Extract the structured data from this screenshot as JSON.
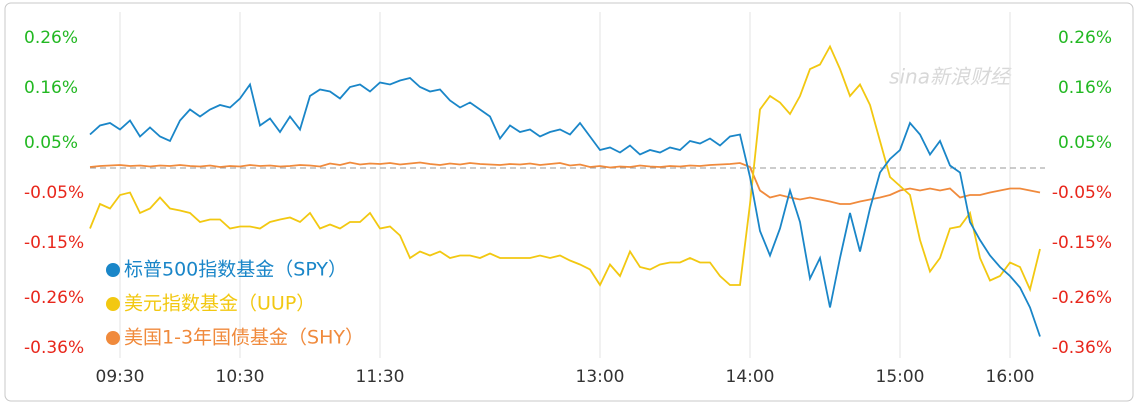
{
  "chart_data": {
    "type": "line",
    "watermark": "sina新浪财经",
    "categories": [
      null,
      null,
      null,
      "09:30",
      null,
      null,
      null,
      null,
      null,
      null,
      null,
      null,
      null,
      null,
      null,
      "10:30",
      null,
      null,
      null,
      null,
      null,
      null,
      null,
      null,
      null,
      null,
      null,
      null,
      null,
      "11:30",
      null,
      null,
      null,
      null,
      null,
      null,
      null,
      null,
      null,
      null,
      null,
      null,
      null,
      null,
      null,
      null,
      null,
      null,
      null,
      null,
      null,
      "13:00",
      null,
      null,
      null,
      null,
      null,
      null,
      null,
      null,
      null,
      null,
      null,
      null,
      null,
      null,
      "14:00",
      null,
      null,
      null,
      null,
      null,
      null,
      null,
      null,
      null,
      null,
      null,
      null,
      null,
      null,
      "15:00",
      null,
      null,
      null,
      null,
      null,
      null,
      null,
      null,
      null,
      null,
      "16:00",
      null,
      null,
      null
    ],
    "series": [
      {
        "name": "标普500指数基金（SPY）",
        "color": "#1a86c8",
        "values": [
          0.067,
          0.085,
          0.09,
          0.077,
          0.095,
          0.063,
          0.081,
          0.063,
          0.054,
          0.095,
          0.117,
          0.103,
          0.117,
          0.126,
          0.121,
          0.139,
          0.167,
          0.085,
          0.099,
          0.072,
          0.103,
          0.077,
          0.144,
          0.157,
          0.153,
          0.139,
          0.162,
          0.167,
          0.153,
          0.171,
          0.167,
          0.175,
          0.18,
          0.162,
          0.153,
          0.157,
          0.135,
          0.121,
          0.131,
          0.117,
          0.103,
          0.059,
          0.085,
          0.072,
          0.077,
          0.063,
          0.072,
          0.077,
          0.067,
          0.09,
          0.063,
          0.036,
          0.041,
          0.031,
          0.045,
          0.027,
          0.036,
          0.031,
          0.041,
          0.036,
          0.054,
          0.049,
          0.059,
          0.045,
          0.063,
          0.067,
          -0.018,
          -0.126,
          -0.175,
          -0.121,
          -0.045,
          -0.108,
          -0.221,
          -0.18,
          -0.279,
          -0.18,
          -0.09,
          -0.167,
          -0.081,
          -0.009,
          0.018,
          0.036,
          0.09,
          0.067,
          0.027,
          0.054,
          0.005,
          -0.009,
          -0.108,
          -0.144,
          -0.175,
          -0.198,
          -0.216,
          -0.239,
          -0.279,
          -0.337
        ]
      },
      {
        "name": "美元指数基金（UUP）",
        "color": "#f2c811",
        "values": [
          -0.121,
          -0.072,
          -0.081,
          -0.054,
          -0.049,
          -0.09,
          -0.081,
          -0.059,
          -0.081,
          -0.085,
          -0.09,
          -0.108,
          -0.103,
          -0.103,
          -0.121,
          -0.117,
          -0.117,
          -0.121,
          -0.108,
          -0.103,
          -0.099,
          -0.108,
          -0.09,
          -0.121,
          -0.113,
          -0.121,
          -0.108,
          -0.108,
          -0.09,
          -0.121,
          -0.117,
          -0.135,
          -0.18,
          -0.167,
          -0.175,
          -0.167,
          -0.18,
          -0.175,
          -0.175,
          -0.18,
          -0.171,
          -0.18,
          -0.18,
          -0.18,
          -0.18,
          -0.175,
          -0.18,
          -0.175,
          -0.185,
          -0.193,
          -0.203,
          -0.234,
          -0.193,
          -0.216,
          -0.167,
          -0.198,
          -0.203,
          -0.193,
          -0.189,
          -0.189,
          -0.18,
          -0.189,
          -0.189,
          -0.216,
          -0.234,
          -0.234,
          -0.072,
          0.117,
          0.144,
          0.131,
          0.108,
          0.144,
          0.198,
          0.207,
          0.243,
          0.198,
          0.144,
          0.167,
          0.126,
          0.054,
          -0.018,
          -0.036,
          -0.054,
          -0.144,
          -0.207,
          -0.18,
          -0.121,
          -0.117,
          -0.09,
          -0.18,
          -0.225,
          -0.216,
          -0.189,
          -0.198,
          -0.243,
          -0.162
        ]
      },
      {
        "name": "美国1-3年国债基金（SHY）",
        "color": "#f08a3c",
        "values": [
          0.002,
          0.004,
          0.005,
          0.006,
          0.004,
          0.005,
          0.003,
          0.005,
          0.004,
          0.006,
          0.004,
          0.003,
          0.005,
          0.002,
          0.004,
          0.003,
          0.006,
          0.004,
          0.005,
          0.003,
          0.004,
          0.006,
          0.005,
          0.003,
          0.009,
          0.006,
          0.011,
          0.007,
          0.009,
          0.008,
          0.01,
          0.007,
          0.009,
          0.011,
          0.008,
          0.006,
          0.009,
          0.007,
          0.01,
          0.008,
          0.007,
          0.006,
          0.008,
          0.007,
          0.009,
          0.006,
          0.008,
          0.01,
          0.005,
          0.007,
          0.002,
          0.004,
          0.001,
          0.003,
          0.002,
          0.005,
          0.003,
          0.002,
          0.004,
          0.003,
          0.005,
          0.004,
          0.006,
          0.007,
          0.008,
          0.01,
          0.002,
          -0.045,
          -0.059,
          -0.054,
          -0.059,
          -0.063,
          -0.059,
          -0.063,
          -0.067,
          -0.072,
          -0.072,
          -0.067,
          -0.063,
          -0.059,
          -0.054,
          -0.045,
          -0.041,
          -0.045,
          -0.041,
          -0.045,
          -0.041,
          -0.059,
          -0.054,
          -0.054,
          -0.049,
          -0.045,
          -0.041,
          -0.041,
          -0.045,
          -0.049
        ]
      }
    ],
    "ylim": [
      -0.36,
      0.26
    ],
    "yticks": [
      {
        "value": 0.26,
        "label": "0.26%"
      },
      {
        "value": 0.16,
        "label": "0.16%"
      },
      {
        "value": 0.05,
        "label": "0.05%"
      },
      {
        "value": -0.05,
        "label": "-0.05%"
      },
      {
        "value": -0.15,
        "label": "-0.15%"
      },
      {
        "value": -0.26,
        "label": "-0.26%"
      },
      {
        "value": -0.36,
        "label": "-0.36%"
      }
    ],
    "y2lim": [
      -0.36,
      0.26
    ],
    "y2ticks": [
      {
        "value": 0.26,
        "label": "0.26%"
      },
      {
        "value": 0.16,
        "label": "0.16%"
      },
      {
        "value": 0.05,
        "label": "0.05%"
      },
      {
        "value": -0.05,
        "label": "-0.05%"
      },
      {
        "value": -0.15,
        "label": "-0.15%"
      },
      {
        "value": -0.26,
        "label": "-0.26%"
      },
      {
        "value": -0.36,
        "label": "-0.36%"
      }
    ],
    "up_color": "#22b822",
    "down_color": "#e8271c",
    "grid": true,
    "legend": "lower left"
  }
}
